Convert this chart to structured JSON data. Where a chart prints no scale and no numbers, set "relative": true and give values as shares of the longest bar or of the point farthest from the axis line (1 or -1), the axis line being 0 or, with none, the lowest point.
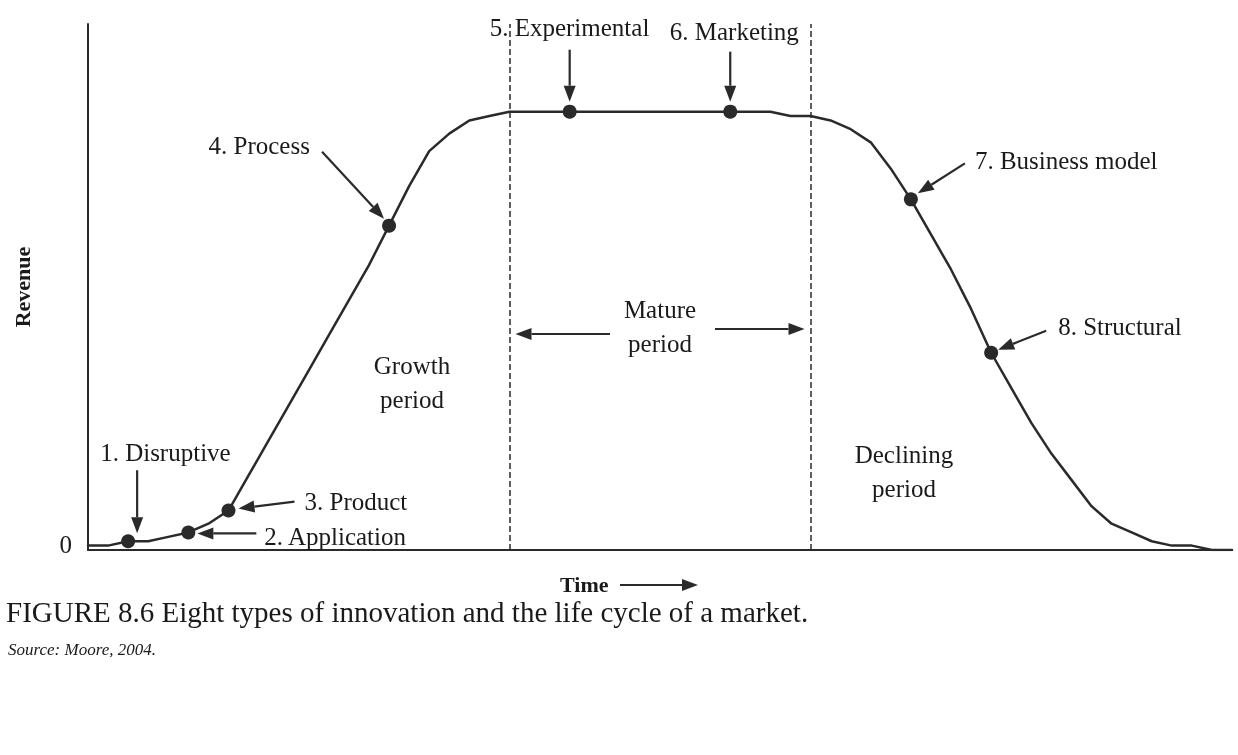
{
  "chart_data": {
    "type": "line",
    "title": "FIGURE 8.6 Eight types of innovation and the life cycle of a market.",
    "xlabel": "Time",
    "ylabel": "Revenue",
    "relative": true,
    "categories": [
      null,
      null,
      null,
      null,
      null,
      null,
      null,
      null,
      null,
      null,
      null,
      null,
      null,
      null,
      null,
      null,
      null,
      null,
      null,
      null,
      null,
      null,
      null,
      null,
      null,
      null,
      null,
      null,
      null,
      null,
      null,
      null,
      null,
      null,
      null,
      null,
      null,
      null,
      null,
      null,
      null,
      null,
      null,
      null,
      null,
      null,
      null,
      null,
      null,
      null,
      null,
      null,
      null,
      null,
      null,
      null,
      null,
      null
    ],
    "series": [
      {
        "marker": "none",
        "color": "#2a2a2a",
        "values": [
          0.01,
          0.01,
          0.02,
          0.02,
          0.03,
          0.04,
          0.06,
          0.09,
          0.17,
          0.25,
          0.33,
          0.41,
          0.49,
          0.57,
          0.65,
          0.74,
          0.83,
          0.91,
          0.95,
          0.98,
          0.99,
          1,
          1,
          1,
          1,
          1,
          1,
          1,
          1,
          1,
          1,
          1,
          1,
          1,
          1,
          0.99,
          0.99,
          0.98,
          0.96,
          0.93,
          0.87,
          0.8,
          0.72,
          0.64,
          0.55,
          0.45,
          0.37,
          0.29,
          0.22,
          0.16,
          0.1,
          0.06,
          0.04,
          0.02,
          0.01,
          0.01,
          0,
          0
        ]
      },
      {
        "marker": "circle",
        "color": "#2a2a2a",
        "values": [
          null,
          null,
          0.02,
          null,
          null,
          0.04,
          null,
          0.09,
          null,
          null,
          null,
          null,
          null,
          null,
          null,
          0.74,
          null,
          null,
          null,
          null,
          null,
          null,
          null,
          null,
          1,
          null,
          null,
          null,
          null,
          null,
          null,
          null,
          1,
          null,
          null,
          null,
          null,
          null,
          null,
          null,
          null,
          0.8,
          null,
          null,
          null,
          0.45,
          null,
          null,
          null,
          null,
          null,
          null,
          null,
          null,
          null,
          null,
          null,
          null
        ]
      }
    ],
    "annotations": [
      "0",
      "1. Disruptive",
      "2. Application",
      "3. Product",
      "4. Process",
      "5. Experimental",
      "6. Marketing",
      "7. Business model",
      "8. Structural",
      "Growth period",
      "Mature period",
      "Declining period",
      "Source: Moore, 2004."
    ]
  }
}
